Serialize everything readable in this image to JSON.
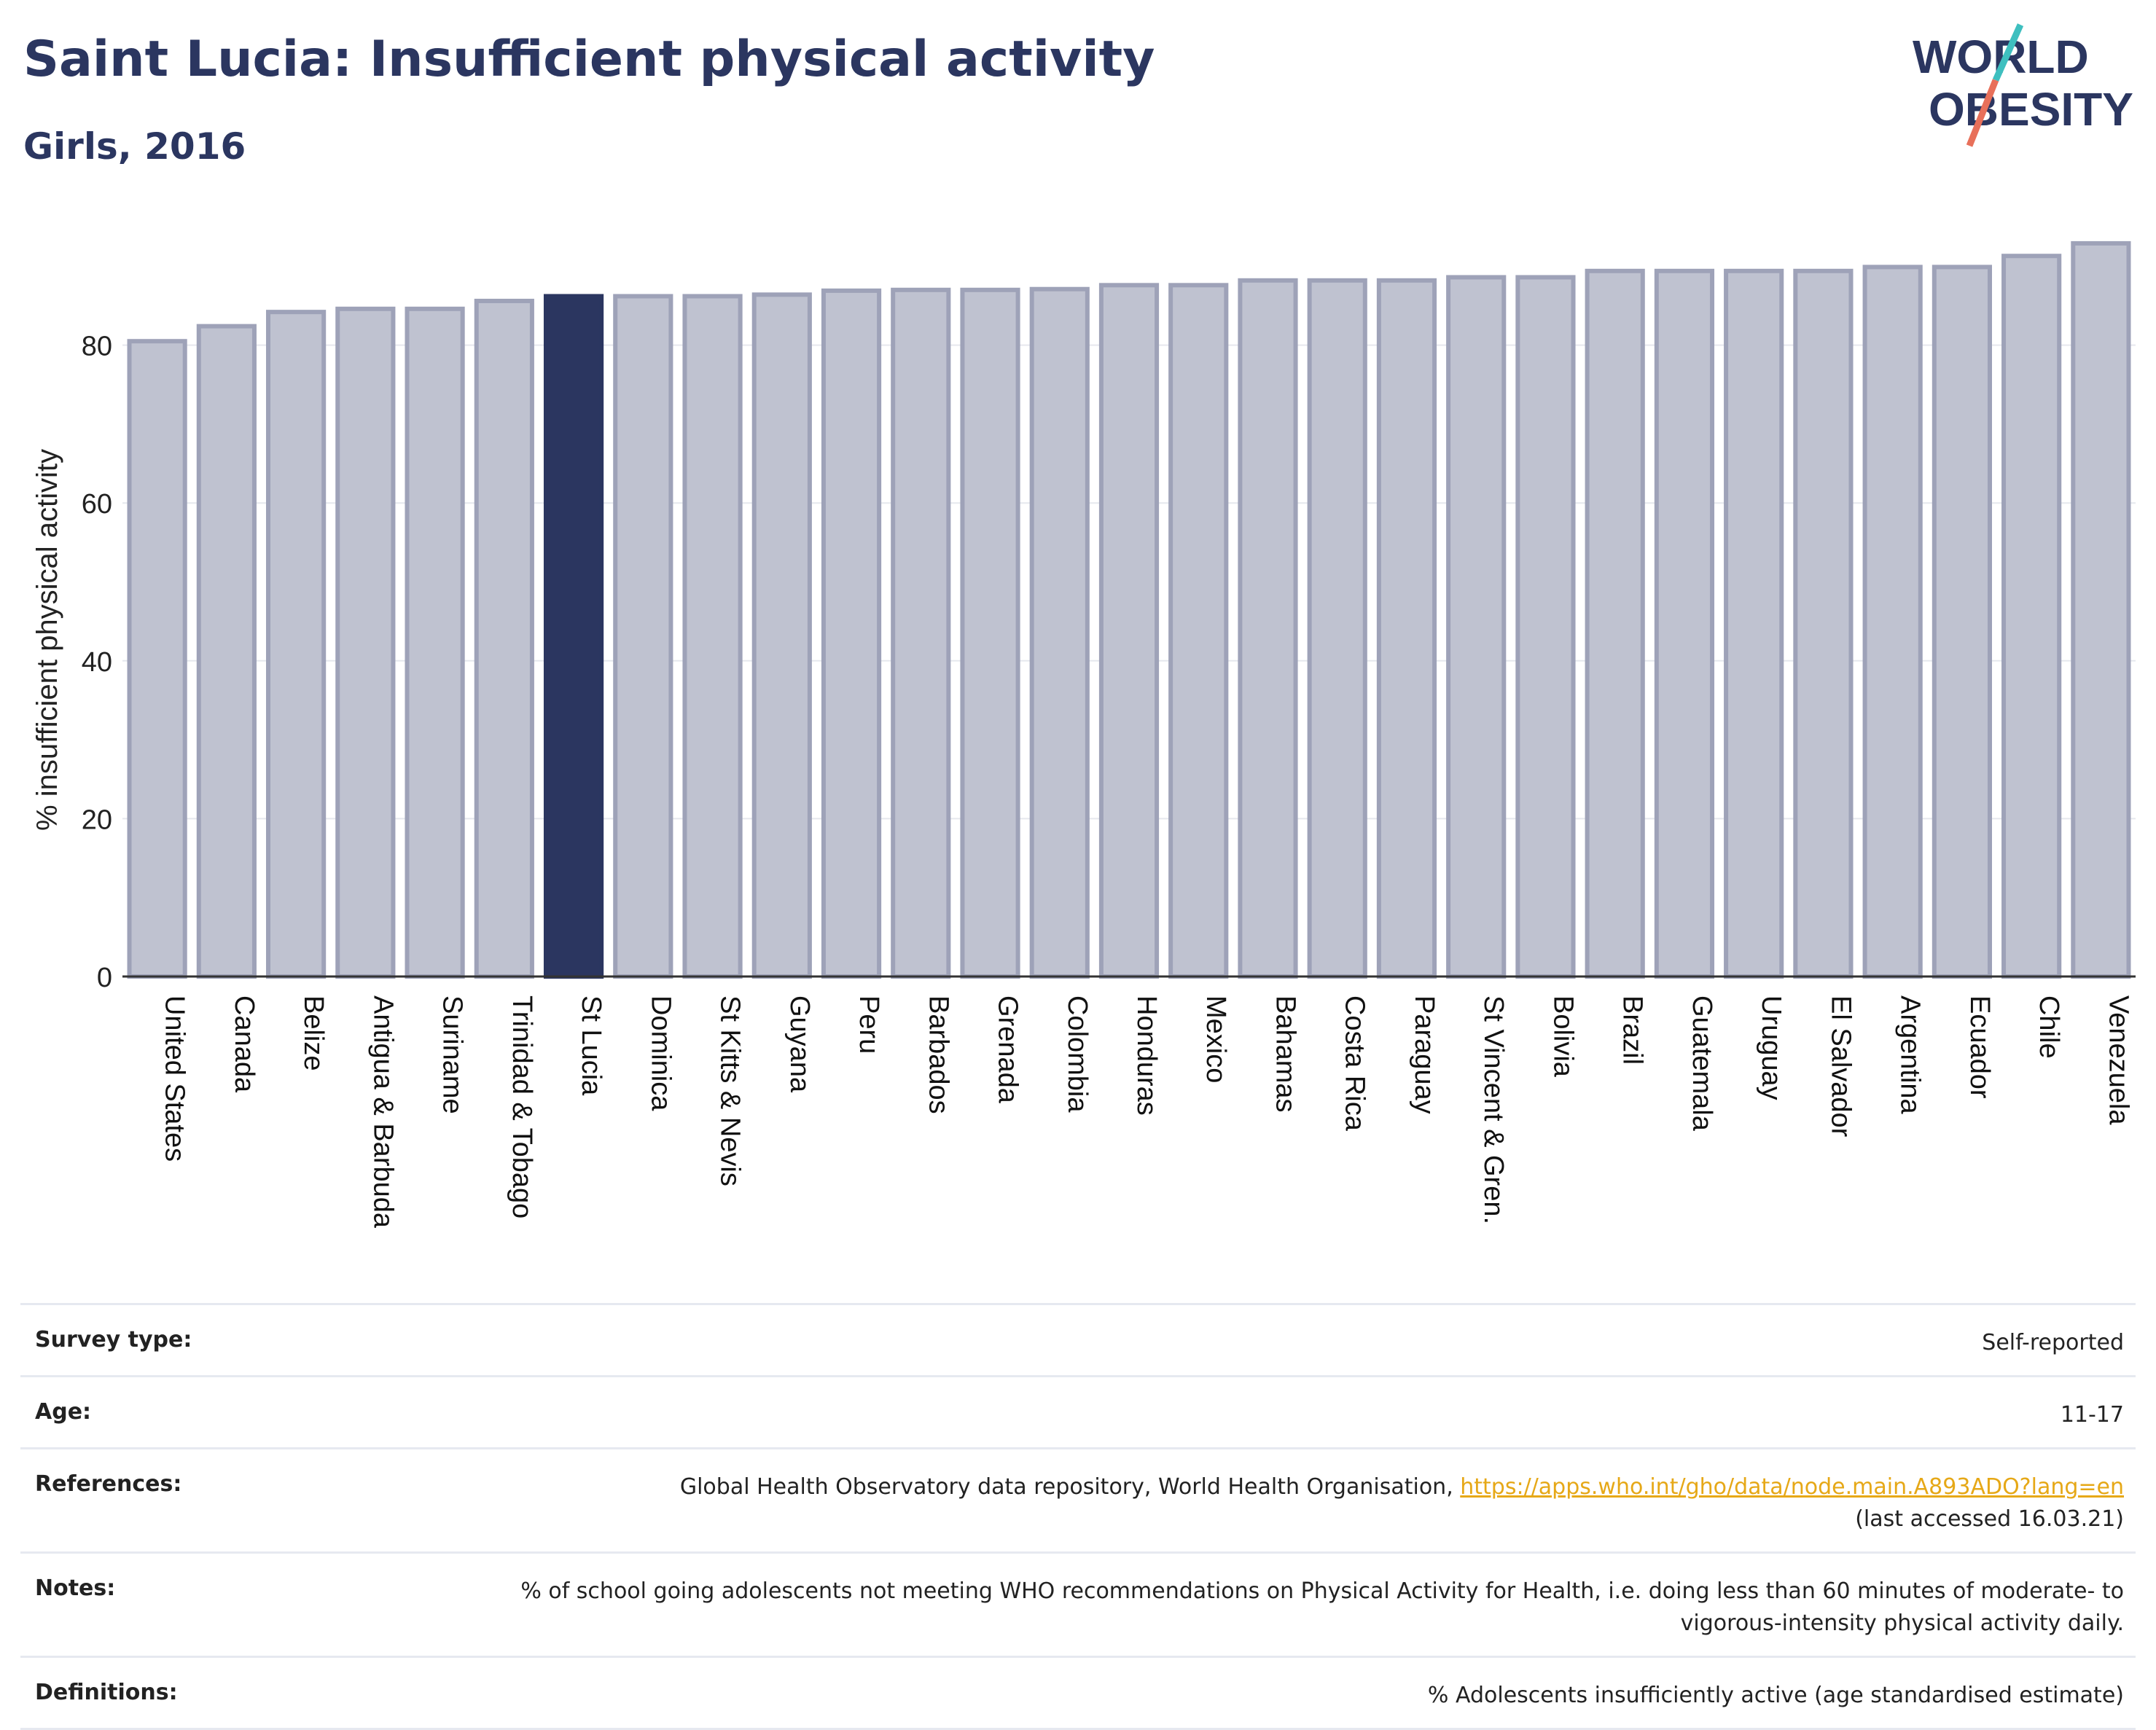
{
  "title": "Saint Lucia: Insufficient physical activity",
  "subtitle": "Girls, 2016",
  "logo": {
    "line1": "WORLD",
    "line2": "OBESITY",
    "accent_teal": "#3ebfbf",
    "accent_coral": "#e8705a",
    "text_color": "#2b3660"
  },
  "colors": {
    "highlight": "#2b3660",
    "bar": "#bfc2d0",
    "bar_edge": "#9ea2b8",
    "axis": "#333333"
  },
  "chart_data": {
    "type": "bar",
    "ylabel": "% insufficient physical activity",
    "xlabel": "",
    "ylim": [
      0,
      94
    ],
    "yticks": [
      0,
      20,
      40,
      60,
      80
    ],
    "grid": true,
    "highlight": "St Lucia",
    "categories": [
      "United States",
      "Canada",
      "Belize",
      "Antigua & Barbuda",
      "Suriname",
      "Trinidad & Tobago",
      "St Lucia",
      "Dominica",
      "St Kitts & Nevis",
      "Guyana",
      "Peru",
      "Barbados",
      "Grenada",
      "Colombia",
      "Honduras",
      "Mexico",
      "Bahamas",
      "Costa Rica",
      "Paraguay",
      "St Vincent & Gren.",
      "Bolivia",
      "Brazil",
      "Guatemala",
      "Uruguay",
      "El Salvador",
      "Argentina",
      "Ecuador",
      "Chile",
      "Venezuela"
    ],
    "values": [
      80.5,
      82.4,
      84.2,
      84.6,
      84.6,
      85.6,
      86.2,
      86.2,
      86.2,
      86.4,
      86.9,
      87.0,
      87.0,
      87.1,
      87.6,
      87.6,
      88.2,
      88.2,
      88.2,
      88.6,
      88.6,
      89.4,
      89.4,
      89.4,
      89.4,
      89.9,
      89.9,
      91.3,
      92.9
    ]
  },
  "info": [
    {
      "key": "Survey type:",
      "value": "Self-reported"
    },
    {
      "key": "Age:",
      "value": "11-17"
    },
    {
      "key": "References:",
      "value": "Global Health Observatory data repository, World Health Organisation, ",
      "link": "https://apps.who.int/gho/data/node.main.A893ADO?lang=en",
      "suffix": "(last accessed 16.03.21)"
    },
    {
      "key": "Notes:",
      "value": "% of school going adolescents not meeting WHO recommendations on Physical Activity for Health, i.e. doing less than 60 minutes of moderate- to vigorous-intensity physical activity daily."
    },
    {
      "key": "Definitions:",
      "value": "% Adolescents insufficiently active (age standardised estimate)"
    }
  ]
}
